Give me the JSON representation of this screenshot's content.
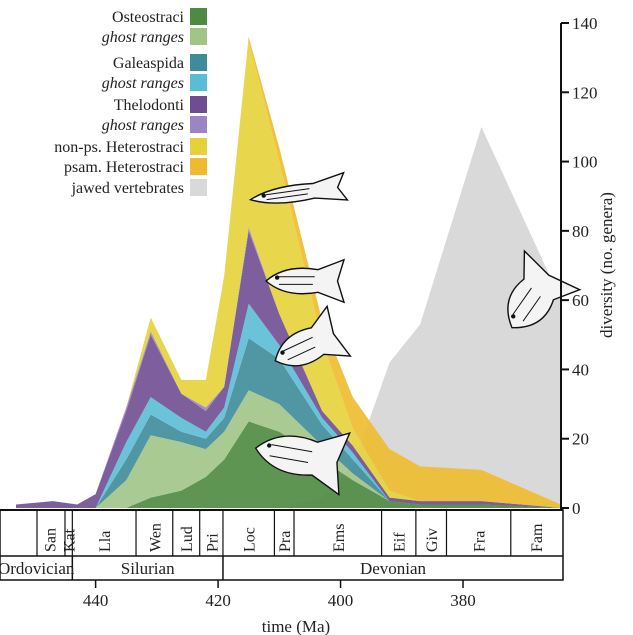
{
  "chart_data": {
    "type": "area",
    "xlabel": "time (Ma)",
    "ylabel": "diversity (no. genera)",
    "xlim": [
      453,
      364
    ],
    "ylim": [
      0,
      140
    ],
    "x_ticks": [
      440,
      420,
      400,
      380
    ],
    "y_ticks": [
      0,
      20,
      40,
      60,
      80,
      100,
      120,
      140
    ],
    "stacking": "stacked",
    "x": [
      453,
      447,
      443,
      440,
      435,
      431,
      426,
      422,
      419,
      415,
      410,
      403,
      398,
      392,
      387,
      377,
      364
    ],
    "series": [
      {
        "name": "Osteostraci",
        "color": "#4e8a3f",
        "values": [
          0,
          0,
          0,
          0,
          0,
          3,
          5,
          9,
          14,
          25,
          22,
          14,
          8,
          2,
          1,
          1,
          0
        ]
      },
      {
        "name": "ghost ranges",
        "color": "#a0c587",
        "values": [
          0,
          0,
          0,
          0,
          8,
          18,
          14,
          8,
          8,
          9,
          8,
          4,
          2,
          0,
          0,
          0,
          0
        ]
      },
      {
        "name": "Galeaspida",
        "color": "#3e8b99",
        "values": [
          0,
          0,
          0,
          0,
          6,
          6,
          3,
          3,
          4,
          15,
          13,
          6,
          4,
          0,
          0,
          0,
          0
        ]
      },
      {
        "name": "ghost ranges",
        "color": "#5bbcd6",
        "values": [
          0,
          0,
          0,
          0,
          5,
          5,
          4,
          2,
          3,
          10,
          4,
          2,
          2,
          0,
          0,
          0,
          0
        ]
      },
      {
        "name": "Thelodonti",
        "color": "#6e4e91",
        "values": [
          1,
          2,
          1,
          4,
          9,
          18,
          7,
          6,
          6,
          21,
          9,
          2,
          2,
          1,
          1,
          1,
          0
        ]
      },
      {
        "name": "ghost ranges",
        "color": "#9d84c2",
        "values": [
          0,
          0,
          0,
          0,
          1,
          1,
          0,
          1,
          0,
          1,
          0,
          0,
          0,
          0,
          0,
          0,
          0
        ]
      },
      {
        "name": "non-ps. Heterostraci",
        "color": "#e5d139",
        "values": [
          0,
          0,
          0,
          0,
          0,
          4,
          4,
          8,
          32,
          54,
          44,
          20,
          5,
          2,
          0,
          0,
          0
        ]
      },
      {
        "name": "psam. Heterostraci",
        "color": "#eebb2e",
        "values": [
          0,
          0,
          0,
          0,
          0,
          0,
          0,
          0,
          0,
          1,
          4,
          6,
          9,
          12,
          10,
          9,
          1
        ]
      },
      {
        "name": "jawed vertebrates",
        "color": "#d9d9d9",
        "values": [
          0,
          0,
          0,
          0,
          0,
          0,
          0,
          0,
          0,
          0,
          0,
          3,
          12,
          42,
          53,
          110,
          60
        ],
        "overlay": true
      }
    ],
    "stages": [
      "San",
      "Kat",
      "Lla",
      "Wen",
      "Lud",
      "Pri",
      "Loc",
      "Pra",
      "Ems",
      "Eif",
      "Giv",
      "Fra",
      "Fam"
    ],
    "periods": [
      "Ordovician",
      "Silurian",
      "Devonian"
    ],
    "legend_position": "top-left",
    "grid": false
  }
}
